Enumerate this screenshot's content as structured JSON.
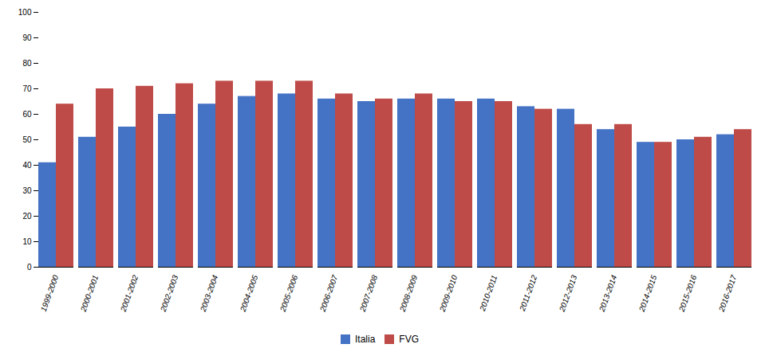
{
  "chart_data": {
    "type": "bar",
    "categories": [
      "1999-2000",
      "2000-2001",
      "2001-2002",
      "2002-2003",
      "2003-2004",
      "2004-2005",
      "2005-2006",
      "2006-2007",
      "2007-2008",
      "2008-2009",
      "2009-2010",
      "2010-2011",
      "2011-2012",
      "2012-2013",
      "2013-2014",
      "2014-2015",
      "2015-2016",
      "2016-2017"
    ],
    "series": [
      {
        "name": "Italia",
        "color": "#4472C4",
        "values": [
          41,
          51,
          55,
          60,
          64,
          67,
          68,
          66,
          65,
          66,
          66,
          66,
          63,
          62,
          54,
          49,
          50,
          52
        ]
      },
      {
        "name": "FVG",
        "color": "#BE4B48",
        "values": [
          64,
          70,
          71,
          72,
          73,
          73,
          73,
          68,
          66,
          68,
          65,
          65,
          62,
          56,
          56,
          49,
          51,
          54
        ]
      }
    ],
    "ylim": [
      0,
      100
    ],
    "yticks": [
      0,
      10,
      20,
      30,
      40,
      50,
      60,
      70,
      80,
      90,
      100
    ],
    "grid": false,
    "legend": "bottom"
  }
}
